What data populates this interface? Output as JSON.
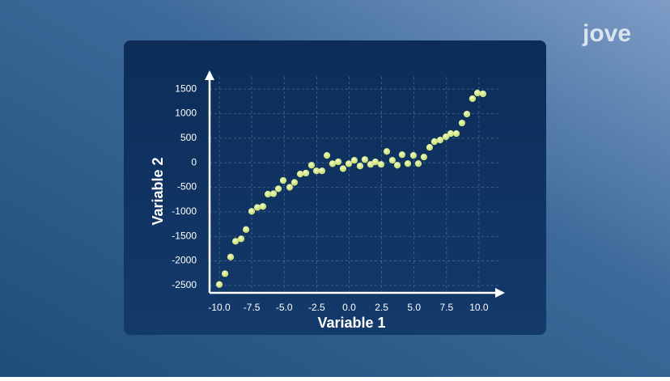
{
  "logo": "jove",
  "chart_data": {
    "type": "scatter",
    "xlabel": "Variable 1",
    "ylabel": "Variable 2",
    "xlim": [
      -10.75,
      11.5
    ],
    "ylim": [
      -2650,
      1750
    ],
    "xticks": [
      {
        "value": -10,
        "label": "-10.0"
      },
      -7.5,
      {
        "value": -5,
        "label": "-5.0"
      },
      -2.5,
      {
        "value": 0,
        "label": "0.0"
      },
      2.5,
      {
        "value": 5,
        "label": "5.0"
      },
      7.5,
      {
        "value": 10,
        "label": "10.0"
      }
    ],
    "yticks": [
      -2500,
      -2000,
      -1500,
      -1000,
      -500,
      0,
      500,
      1000,
      1500
    ],
    "grid": true,
    "color": "#d9ee8c",
    "x": [
      -10,
      -9.56,
      -9.13,
      -8.75,
      -8.32,
      -7.94,
      -7.51,
      -7.07,
      -6.64,
      -6.26,
      -5.83,
      -5.45,
      -5.08,
      -4.58,
      -4.21,
      -3.77,
      -3.33,
      -2.9,
      -2.52,
      -2.09,
      -1.71,
      -1.28,
      -0.84,
      -0.47,
      -0.03,
      0.4,
      0.84,
      1.21,
      1.65,
      2.02,
      2.46,
      2.9,
      3.33,
      3.71,
      4.08,
      4.52,
      4.95,
      5.33,
      5.76,
      6.2,
      6.57,
      7.01,
      7.45,
      7.82,
      8.26,
      8.69,
      9.07,
      9.5,
      9.88,
      10.31
    ],
    "values": [
      -2480,
      -2260,
      -1920,
      -1600,
      -1550,
      -1360,
      -990,
      -910,
      -890,
      -640,
      -630,
      -530,
      -360,
      -500,
      -400,
      -230,
      -210,
      -50,
      -165,
      -165,
      150,
      -20,
      20,
      -120,
      -20,
      50,
      -66,
      66,
      -33,
      17,
      -33,
      230,
      50,
      -50,
      165,
      -17,
      150,
      -17,
      116,
      314,
      430,
      463,
      529,
      595,
      595,
      810,
      992,
      1306,
      1421,
      1405
    ]
  }
}
